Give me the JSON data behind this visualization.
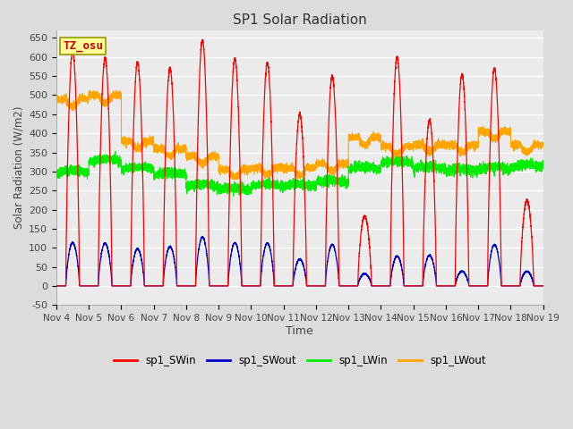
{
  "title": "SP1 Solar Radiation",
  "xlabel": "Time",
  "ylabel": "Solar Radiation (W/m2)",
  "ylim": [
    -50,
    670
  ],
  "yticks": [
    -50,
    0,
    50,
    100,
    150,
    200,
    250,
    300,
    350,
    400,
    450,
    500,
    550,
    600,
    650
  ],
  "xtick_labels": [
    "Nov 4",
    "Nov 5",
    "Nov 6",
    "Nov 7",
    "Nov 8",
    "Nov 9",
    "Nov 10",
    "Nov 11",
    "Nov 12",
    "Nov 13",
    "Nov 14",
    "Nov 15",
    "Nov 16",
    "Nov 17",
    "Nov 18",
    "Nov 19"
  ],
  "colors": {
    "SWin": "#FF0000",
    "SWout": "#0000CC",
    "LWin": "#00EE00",
    "LWout": "#FFA500"
  },
  "tz_label": "TZ_osu",
  "bg_color": "#DCDCDC",
  "plot_bg": "#EBEBEB",
  "grid_color": "#FFFFFF",
  "title_fontsize": 11,
  "days": 15,
  "pts_per_day": 480
}
